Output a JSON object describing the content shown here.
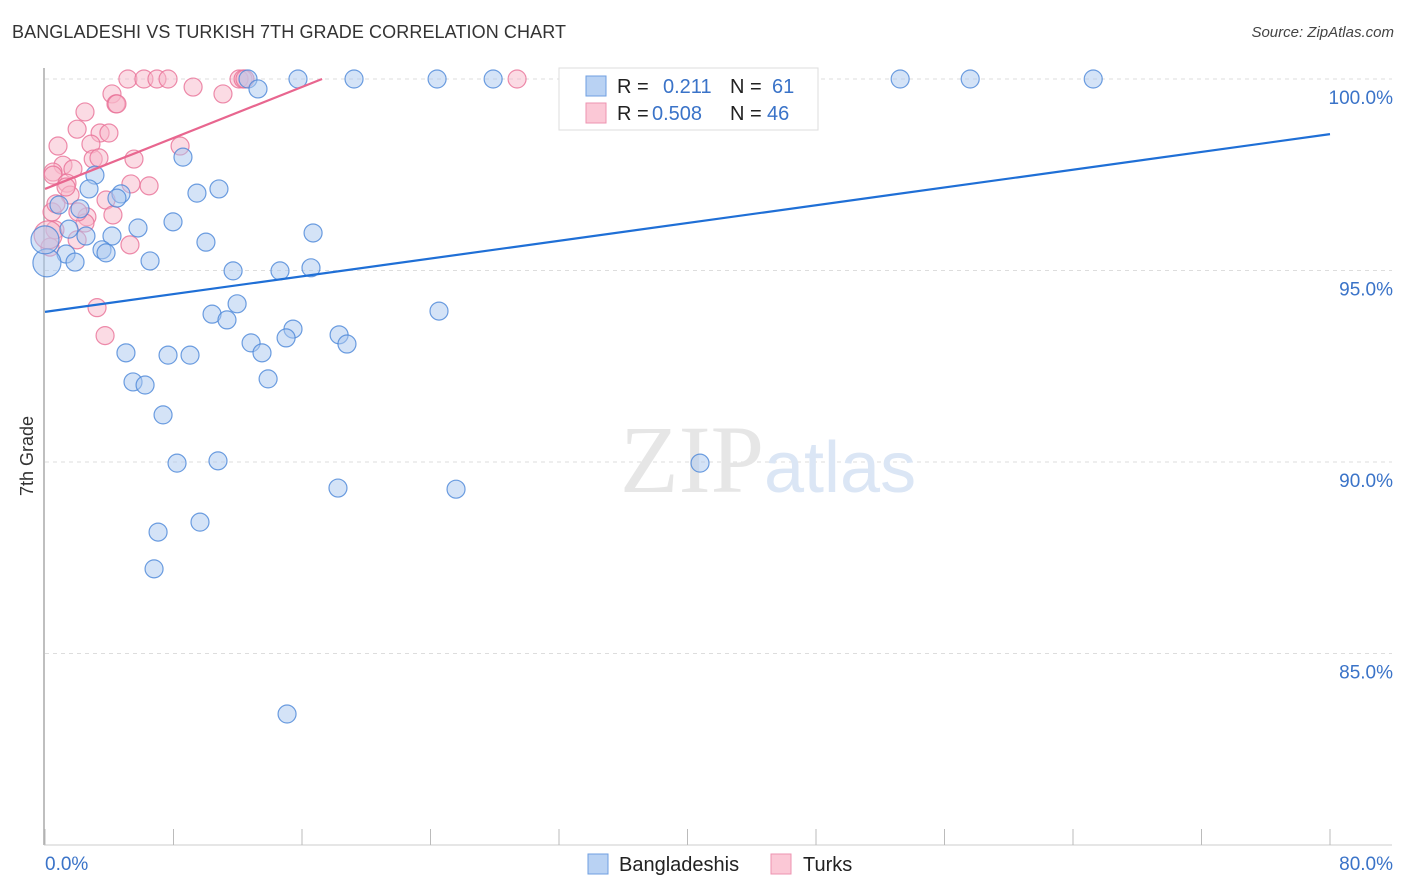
{
  "chart_data": {
    "type": "scatter",
    "title": "BANGLADESHI VS TURKISH 7TH GRADE CORRELATION CHART",
    "source": "Source: ZipAtlas.com",
    "xlabel": "",
    "ylabel": "7th Grade",
    "xlim": [
      0,
      80
    ],
    "ylim": [
      80,
      100.3
    ],
    "x_tick_labels": [
      "0.0%",
      "80.0%"
    ],
    "y_ticks": [
      100,
      95,
      90,
      85
    ],
    "y_tick_labels": [
      "100.0%",
      "95.0%",
      "90.0%",
      "85.0%"
    ],
    "grid": true,
    "watermark": "ZIPatlas",
    "legend_position": "top-center",
    "series": [
      {
        "name": "Bangladeshis",
        "color": "#4a86d8",
        "fill": "#a9c8f0",
        "line_color": "#1f6fd6",
        "R": "0.211",
        "N": "61",
        "trend": [
          [
            0,
            93.92
          ],
          [
            80,
            98.56
          ]
        ],
        "points": [
          [
            12.64,
            100
          ],
          [
            15.75,
            100
          ],
          [
            19.24,
            100
          ],
          [
            24.41,
            100
          ],
          [
            27.9,
            100
          ],
          [
            53.24,
            100
          ],
          [
            57.6,
            100
          ],
          [
            65.26,
            100
          ],
          [
            13.26,
            99.74
          ],
          [
            8.59,
            97.96
          ],
          [
            3.11,
            97.49
          ],
          [
            2.74,
            97.13
          ],
          [
            4.73,
            97.0
          ],
          [
            4.48,
            96.89
          ],
          [
            9.46,
            97.02
          ],
          [
            10.83,
            97.13
          ],
          [
            0.87,
            96.71
          ],
          [
            2.18,
            96.61
          ],
          [
            1.49,
            96.08
          ],
          [
            5.79,
            96.11
          ],
          [
            7.97,
            96.27
          ],
          [
            4.17,
            95.9
          ],
          [
            2.55,
            95.9
          ],
          [
            16.69,
            95.98
          ],
          [
            10.02,
            95.74
          ],
          [
            3.55,
            95.54
          ],
          [
            3.8,
            95.46
          ],
          [
            1.31,
            95.43
          ],
          [
            6.54,
            95.25
          ],
          [
            1.87,
            95.22
          ],
          [
            0.12,
            95.2
          ],
          [
            11.71,
            94.99
          ],
          [
            14.63,
            94.99
          ],
          [
            16.56,
            95.07
          ],
          [
            24.53,
            93.94
          ],
          [
            11.96,
            94.13
          ],
          [
            10.4,
            93.86
          ],
          [
            11.33,
            93.71
          ],
          [
            15.44,
            93.47
          ],
          [
            18.31,
            93.32
          ],
          [
            15.01,
            93.24
          ],
          [
            12.83,
            93.11
          ],
          [
            18.8,
            93.08
          ],
          [
            5.04,
            92.85
          ],
          [
            7.66,
            92.79
          ],
          [
            9.03,
            92.79
          ],
          [
            13.51,
            92.85
          ],
          [
            5.48,
            92.09
          ],
          [
            6.23,
            92.01
          ],
          [
            13.89,
            92.17
          ],
          [
            7.35,
            91.23
          ],
          [
            8.22,
            89.97
          ],
          [
            10.77,
            90.03
          ],
          [
            40.78,
            89.97
          ],
          [
            18.24,
            89.32
          ],
          [
            25.59,
            89.29
          ],
          [
            9.65,
            88.43
          ],
          [
            7.04,
            88.17
          ],
          [
            6.79,
            87.21
          ],
          [
            15.07,
            83.42
          ],
          [
            0.0,
            95.8
          ]
        ]
      },
      {
        "name": "Turks",
        "color": "#e86f96",
        "fill": "#f7b7c9",
        "line_color": "#e8668f",
        "R": "0.508",
        "N": "46",
        "trend": [
          [
            0,
            97.13
          ],
          [
            17.25,
            100
          ]
        ],
        "points": [
          [
            5.16,
            100
          ],
          [
            6.16,
            100
          ],
          [
            6.97,
            100
          ],
          [
            7.66,
            100
          ],
          [
            9.22,
            99.79
          ],
          [
            11.08,
            99.61
          ],
          [
            12.08,
            100
          ],
          [
            12.33,
            100
          ],
          [
            12.45,
            100
          ],
          [
            4.17,
            99.61
          ],
          [
            4.42,
            99.35
          ],
          [
            4.48,
            99.35
          ],
          [
            2.49,
            99.14
          ],
          [
            2.0,
            98.69
          ],
          [
            3.43,
            98.59
          ],
          [
            3.98,
            98.59
          ],
          [
            0.81,
            98.25
          ],
          [
            2.86,
            98.3
          ],
          [
            8.41,
            98.25
          ],
          [
            3.0,
            97.91
          ],
          [
            3.36,
            97.94
          ],
          [
            5.54,
            97.91
          ],
          [
            1.12,
            97.75
          ],
          [
            1.74,
            97.65
          ],
          [
            0.5,
            97.57
          ],
          [
            0.5,
            97.49
          ],
          [
            1.37,
            97.28
          ],
          [
            5.35,
            97.26
          ],
          [
            6.48,
            97.21
          ],
          [
            1.56,
            96.97
          ],
          [
            3.8,
            96.84
          ],
          [
            4.23,
            96.45
          ],
          [
            2.61,
            96.4
          ],
          [
            0.44,
            96.53
          ],
          [
            0.62,
            96.06
          ],
          [
            2.0,
            95.8
          ],
          [
            5.29,
            95.67
          ],
          [
            3.24,
            94.03
          ],
          [
            3.74,
            93.3
          ],
          [
            2.49,
            96.24
          ],
          [
            2.05,
            96.53
          ],
          [
            0.31,
            95.61
          ],
          [
            0.19,
            95.93
          ],
          [
            29.39,
            100
          ],
          [
            0.68,
            96.74
          ],
          [
            1.31,
            97.18
          ]
        ]
      }
    ],
    "legend_labels": {
      "r": "R =",
      "n": "N ="
    }
  }
}
